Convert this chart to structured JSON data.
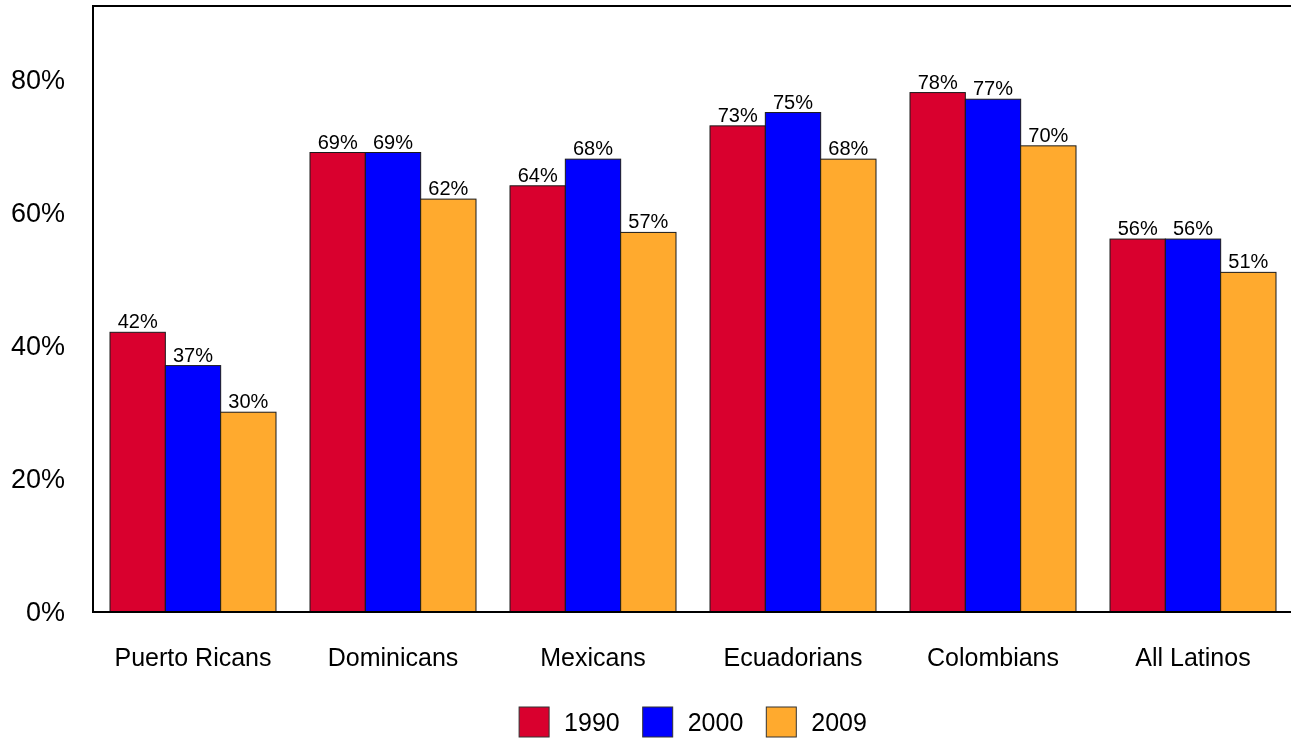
{
  "chart_data": {
    "type": "bar",
    "categories": [
      "Puerto Ricans",
      "Dominicans",
      "Mexicans",
      "Ecuadorians",
      "Colombians",
      "All Latinos"
    ],
    "series": [
      {
        "name": "1990",
        "color": "#d9002e",
        "values": [
          42,
          69,
          64,
          73,
          78,
          56
        ],
        "value_labels": [
          "42%",
          "69%",
          "64%",
          "73%",
          "78%",
          "56%"
        ]
      },
      {
        "name": "2000",
        "color": "#0000ff",
        "values": [
          37,
          69,
          68,
          75,
          77,
          56
        ],
        "value_labels": [
          "37%",
          "69%",
          "68%",
          "75%",
          "77%",
          "56%"
        ]
      },
      {
        "name": "2009",
        "color": "#ffaa2e",
        "values": [
          30,
          62,
          57,
          68,
          70,
          51
        ],
        "value_labels": [
          "30%",
          "62%",
          "57%",
          "68%",
          "70%",
          "51%"
        ]
      }
    ],
    "ylim": [
      0,
      91
    ],
    "yticks": [
      {
        "value": 0,
        "label": "0%"
      },
      {
        "value": 20,
        "label": "20%"
      },
      {
        "value": 40,
        "label": "40%"
      },
      {
        "value": 60,
        "label": "60%"
      },
      {
        "value": 80,
        "label": "80%"
      }
    ],
    "legend": "bottom"
  }
}
